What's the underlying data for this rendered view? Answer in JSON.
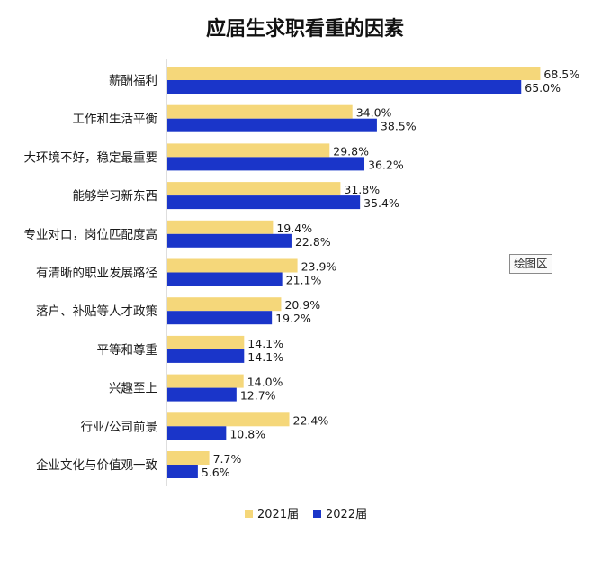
{
  "chart_data": {
    "type": "bar",
    "orientation": "horizontal",
    "title": "应届生求职看重的因素",
    "categories": [
      "薪酬福利",
      "工作和生活平衡",
      "大环境不好，稳定最重要",
      "能够学习新东西",
      "专业对口，岗位匹配度高",
      "有清晰的职业发展路径",
      "落户、补贴等人才政策",
      "平等和尊重",
      "兴趣至上",
      "行业/公司前景",
      "企业文化与价值观一致"
    ],
    "series": [
      {
        "name": "2021届",
        "color": "#f5d77a",
        "values": [
          68.5,
          34.0,
          29.8,
          31.8,
          19.4,
          23.9,
          20.9,
          14.1,
          14.0,
          22.4,
          7.7
        ],
        "labels": [
          "68.5%",
          "34.0%",
          "29.8%",
          "31.8%",
          "19.4%",
          "23.9%",
          "20.9%",
          "14.1%",
          "14.0%",
          "22.4%",
          "7.7%"
        ]
      },
      {
        "name": "2022届",
        "color": "#1a35c9",
        "values": [
          65.0,
          38.5,
          36.2,
          35.4,
          22.8,
          21.1,
          19.2,
          14.1,
          12.7,
          10.8,
          5.6
        ],
        "labels": [
          "65.0%",
          "38.5%",
          "36.2%",
          "35.4%",
          "22.8%",
          "21.1%",
          "19.2%",
          "14.1%",
          "12.7%",
          "10.8%",
          "5.6%"
        ]
      }
    ],
    "xlim": [
      0,
      70
    ],
    "legend_position": "bottom-center",
    "grid": false,
    "annotation": "绘图区"
  }
}
